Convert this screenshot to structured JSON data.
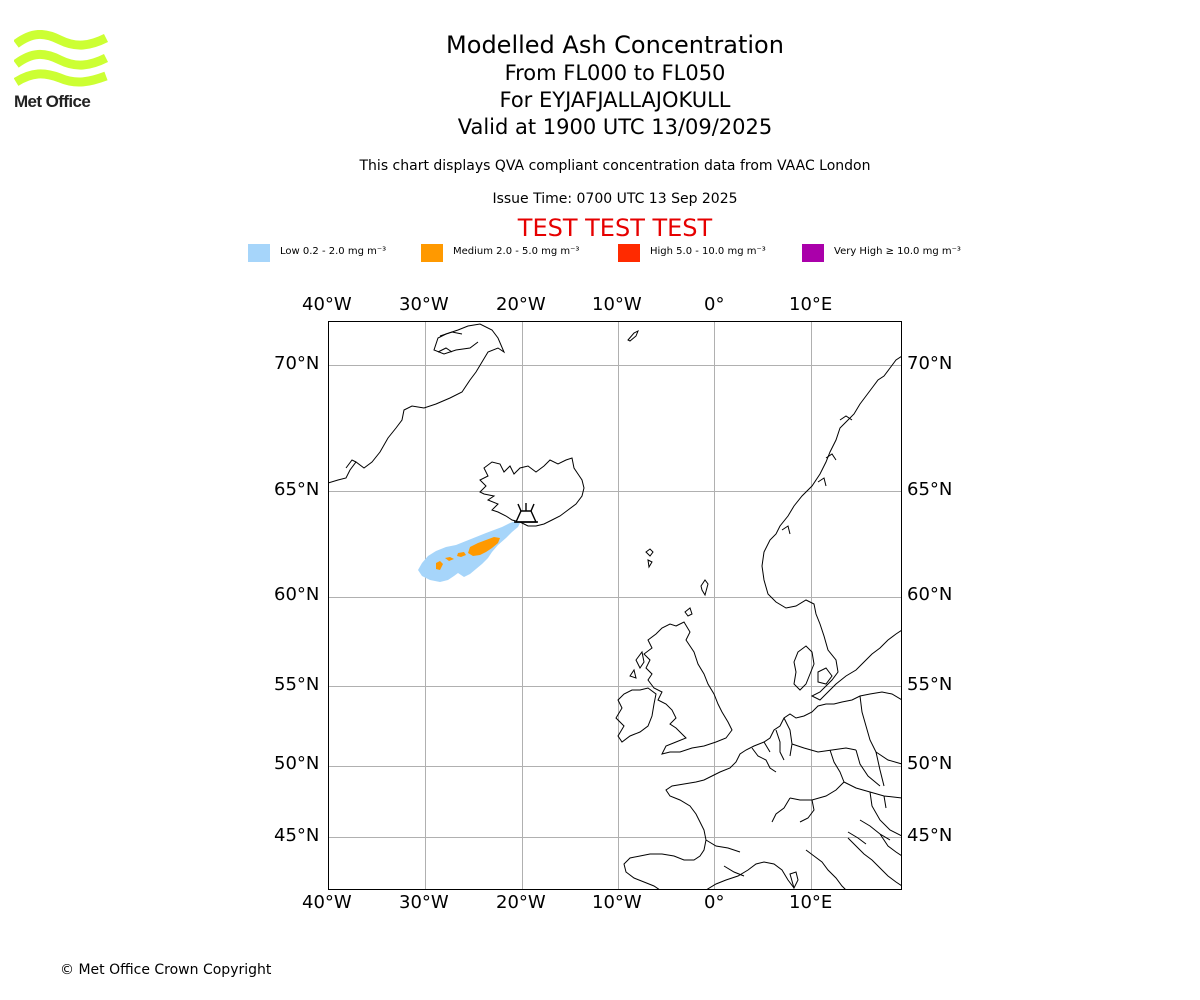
{
  "header": {
    "logo_text": "Met Office",
    "title": "Modelled Ash Concentration",
    "levels": "From FL000 to FL050",
    "volcano": "For EYJAFJALLAJOKULL",
    "valid": "Valid at 1900 UTC 13/09/2025",
    "description": "This chart displays QVA compliant concentration data from VAAC London",
    "issue_time": "Issue Time: 0700 UTC 13 Sep 2025",
    "test_banner": "TEST TEST TEST"
  },
  "legend": [
    {
      "label": "Low 0.2 - 2.0 mg m⁻³",
      "color": "#a6d5fa"
    },
    {
      "label": "Medium 2.0 - 5.0 mg m⁻³",
      "color": "#ff9900"
    },
    {
      "label": "High 5.0 - 10.0 mg m⁻³",
      "color": "#ff2a00"
    },
    {
      "label": "Very High  ≥  10.0 mg m⁻³",
      "color": "#aa00aa"
    }
  ],
  "map": {
    "longitude_labels": [
      "40°W",
      "30°W",
      "20°W",
      "10°W",
      "0°",
      "10°E"
    ],
    "latitude_labels": [
      "70°N",
      "65°N",
      "60°N",
      "55°N",
      "50°N",
      "45°N"
    ],
    "volcano_symbol": "volcano-icon",
    "ash_colors": {
      "low": "#a6d5fa",
      "medium": "#ff9900"
    }
  },
  "footer": {
    "copyright": "© Met Office Crown Copyright"
  }
}
